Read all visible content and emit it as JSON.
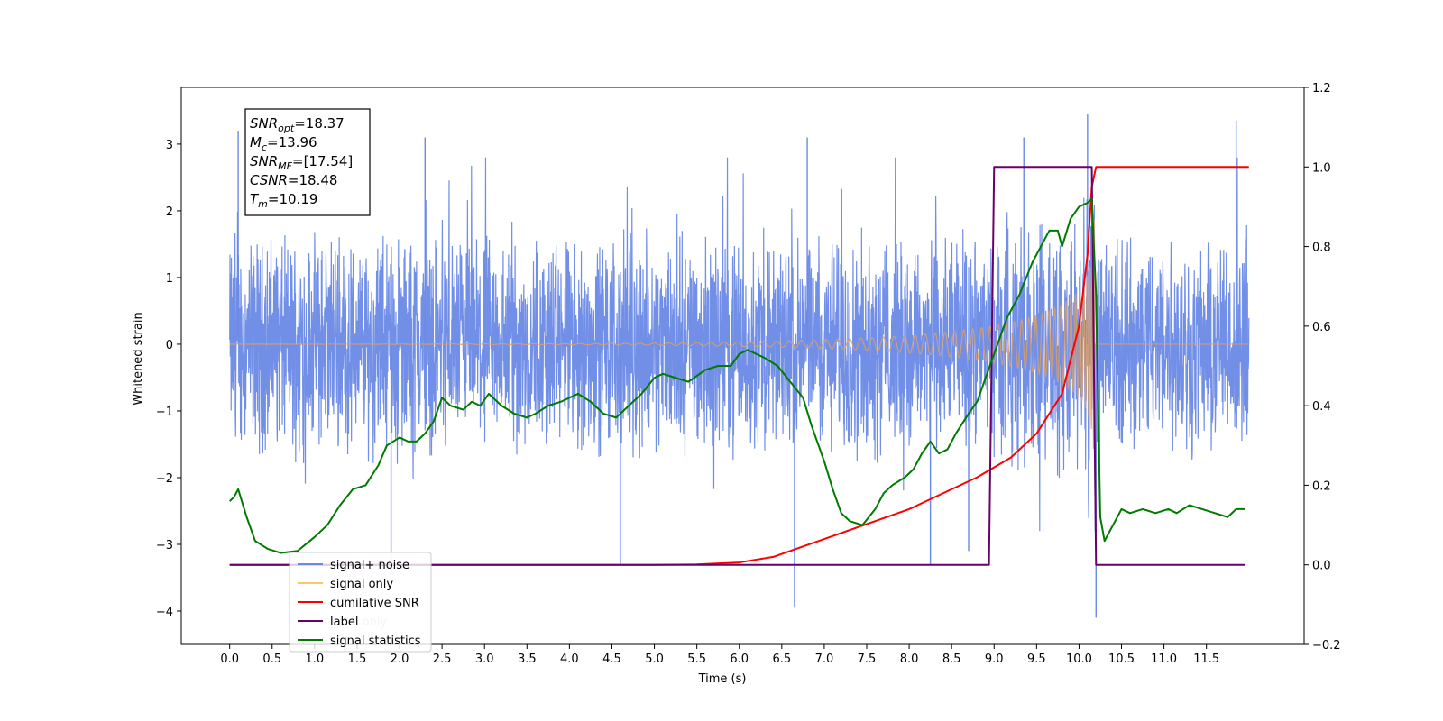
{
  "chart_data": {
    "type": "line",
    "title": "",
    "xlabel": "Time (s)",
    "ylabel": "Whitened strain",
    "y2label": "",
    "xlim": [
      -0.57,
      12.65
    ],
    "ylim": [
      -4.5,
      3.85
    ],
    "y2lim": [
      -0.2,
      1.2
    ],
    "x_ticks": [
      "0.0",
      "0.5",
      "1.0",
      "1.5",
      "2.0",
      "2.5",
      "3.0",
      "3.5",
      "4.0",
      "4.5",
      "5.0",
      "5.5",
      "6.0",
      "6.5",
      "7.0",
      "7.5",
      "8.0",
      "8.5",
      "9.0",
      "9.5",
      "10.0",
      "10.5",
      "11.0",
      "11.5"
    ],
    "y_ticks": [
      "−4",
      "−3",
      "−2",
      "−1",
      "0",
      "1",
      "2",
      "3"
    ],
    "y2_ticks": [
      "−0.2",
      "0.0",
      "0.2",
      "0.4",
      "0.6",
      "0.8",
      "1.0",
      "1.2"
    ],
    "grid": false,
    "legend_position": "lower-left",
    "legend": [
      {
        "label": "signal+ noise",
        "color": "#6a89e6"
      },
      {
        "label": "signal only",
        "color": "#ffc56b"
      },
      {
        "label": "cumilative SNR",
        "color": "#ff0000"
      },
      {
        "label": "label",
        "color": "#6a006a"
      },
      {
        "label": "signal statistics",
        "color": "#007a00"
      }
    ],
    "annotation": [
      {
        "sym": "SNR",
        "sub": "opt",
        "value": "=18.37"
      },
      {
        "sym": "M",
        "sub": "c",
        "value": "=13.96"
      },
      {
        "sym": "SNR",
        "sub": "MF",
        "value": "=[17.54]"
      },
      {
        "sym": "CSNR",
        "sub": "",
        "value": "=18.48"
      },
      {
        "sym": "T",
        "sub": "m",
        "value": "=10.19"
      }
    ],
    "overlay_text": [
      "label only"
    ],
    "series": [
      {
        "name": "signal+ noise",
        "axis": "left",
        "color": "#6a89e6",
        "kind": "noise",
        "x_range": [
          0.0,
          12.0
        ],
        "noise_envelope": [
          -1.8,
          2.1
        ],
        "extreme_peaks": [
          {
            "x": 0.1,
            "y": 3.2
          },
          {
            "x": 1.9,
            "y": -3.3
          },
          {
            "x": 2.3,
            "y": 3.1
          },
          {
            "x": 4.6,
            "y": -3.3
          },
          {
            "x": 6.65,
            "y": -3.95
          },
          {
            "x": 6.8,
            "y": 3.1
          },
          {
            "x": 8.25,
            "y": -3.3
          },
          {
            "x": 8.7,
            "y": -3.1
          },
          {
            "x": 9.35,
            "y": 3.1
          },
          {
            "x": 10.1,
            "y": 3.45
          },
          {
            "x": 10.2,
            "y": -4.1
          },
          {
            "x": 11.85,
            "y": 3.35
          }
        ]
      },
      {
        "name": "signal only",
        "axis": "left",
        "color": "#ffc56b",
        "kind": "chirp",
        "x_range": [
          0.0,
          12.0
        ],
        "merger_time": 10.19,
        "peak_amplitude": 2.4
      },
      {
        "name": "cumilative SNR",
        "axis": "right",
        "color": "#ff0000",
        "x": [
          0.0,
          5.0,
          5.5,
          6.0,
          6.4,
          6.8,
          7.2,
          7.6,
          8.0,
          8.4,
          8.8,
          9.2,
          9.5,
          9.8,
          10.0,
          10.1,
          10.15,
          10.2,
          12.0
        ],
        "y": [
          0.0,
          0.0,
          0.001,
          0.006,
          0.02,
          0.05,
          0.08,
          0.11,
          0.14,
          0.18,
          0.22,
          0.27,
          0.33,
          0.43,
          0.6,
          0.78,
          0.95,
          1.0,
          1.0
        ]
      },
      {
        "name": "label",
        "axis": "right",
        "color": "#6a006a",
        "x": [
          0.0,
          8.94,
          9.0,
          10.15,
          10.2,
          11.95
        ],
        "y": [
          0.0,
          0.0,
          1.0,
          1.0,
          0.0,
          0.0
        ]
      },
      {
        "name": "signal statistics",
        "axis": "right",
        "color": "#007a00",
        "x": [
          0.0,
          0.05,
          0.1,
          0.2,
          0.3,
          0.45,
          0.6,
          0.8,
          1.0,
          1.15,
          1.3,
          1.45,
          1.6,
          1.75,
          1.85,
          2.0,
          2.1,
          2.2,
          2.3,
          2.4,
          2.5,
          2.6,
          2.75,
          2.85,
          2.95,
          3.05,
          3.2,
          3.35,
          3.5,
          3.6,
          3.75,
          3.9,
          4.0,
          4.1,
          4.25,
          4.4,
          4.55,
          4.7,
          4.85,
          5.0,
          5.1,
          5.25,
          5.4,
          5.6,
          5.75,
          5.9,
          6.0,
          6.1,
          6.2,
          6.3,
          6.45,
          6.6,
          6.75,
          6.85,
          7.0,
          7.1,
          7.2,
          7.3,
          7.45,
          7.6,
          7.7,
          7.8,
          7.95,
          8.05,
          8.15,
          8.25,
          8.35,
          8.45,
          8.55,
          8.7,
          8.8,
          8.9,
          9.0,
          9.05,
          9.15,
          9.3,
          9.45,
          9.55,
          9.65,
          9.75,
          9.8,
          9.9,
          10.0,
          10.1,
          10.15,
          10.2,
          10.25,
          10.3,
          10.4,
          10.5,
          10.6,
          10.75,
          10.9,
          11.05,
          11.15,
          11.3,
          11.45,
          11.6,
          11.75,
          11.85,
          11.95
        ],
        "y": [
          0.16,
          0.17,
          0.19,
          0.12,
          0.06,
          0.04,
          0.03,
          0.035,
          0.07,
          0.1,
          0.15,
          0.19,
          0.2,
          0.25,
          0.3,
          0.32,
          0.31,
          0.31,
          0.33,
          0.36,
          0.42,
          0.4,
          0.39,
          0.41,
          0.4,
          0.43,
          0.4,
          0.38,
          0.37,
          0.38,
          0.4,
          0.41,
          0.42,
          0.43,
          0.41,
          0.38,
          0.37,
          0.4,
          0.43,
          0.47,
          0.48,
          0.47,
          0.46,
          0.49,
          0.5,
          0.5,
          0.53,
          0.54,
          0.53,
          0.52,
          0.5,
          0.46,
          0.42,
          0.35,
          0.26,
          0.19,
          0.13,
          0.11,
          0.1,
          0.14,
          0.18,
          0.2,
          0.22,
          0.24,
          0.28,
          0.31,
          0.28,
          0.29,
          0.33,
          0.38,
          0.41,
          0.47,
          0.53,
          0.56,
          0.62,
          0.68,
          0.76,
          0.8,
          0.84,
          0.84,
          0.8,
          0.87,
          0.9,
          0.91,
          0.92,
          0.68,
          0.12,
          0.06,
          0.1,
          0.14,
          0.13,
          0.14,
          0.13,
          0.14,
          0.13,
          0.15,
          0.14,
          0.13,
          0.12,
          0.14,
          0.14
        ]
      }
    ]
  }
}
